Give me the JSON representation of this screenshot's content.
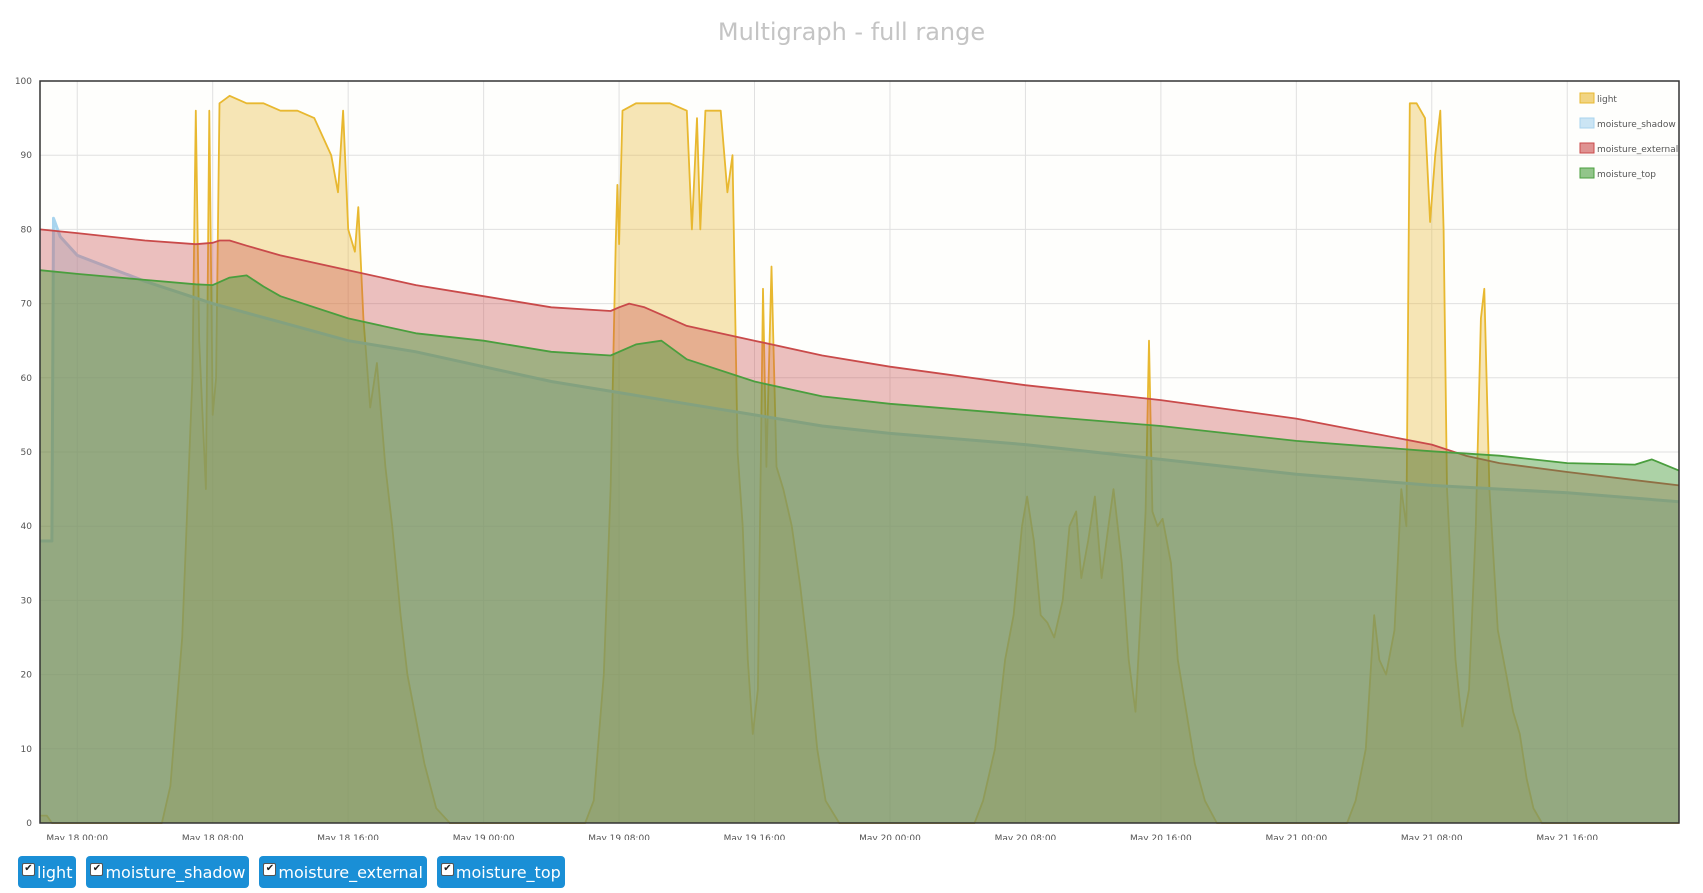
{
  "page_title": "Multigraph - full range",
  "colors": {
    "light": "#e8b830",
    "moisture_shadow": "#a8d4ee",
    "moisture_external": "#c94a4a",
    "moisture_top": "#4a9e3e"
  },
  "toggles": [
    {
      "label": "light",
      "checked": true
    },
    {
      "label": "moisture_shadow",
      "checked": true
    },
    {
      "label": "moisture_external",
      "checked": true
    },
    {
      "label": "moisture_top",
      "checked": true
    }
  ],
  "chart_data": {
    "type": "area",
    "title": "Multigraph - full range",
    "xlabel": "",
    "ylabel": "",
    "ylim": [
      0,
      100
    ],
    "xlim_hours": [
      -2.2,
      94.6
    ],
    "yticks": [
      0,
      10,
      20,
      30,
      40,
      50,
      60,
      70,
      80,
      90,
      100
    ],
    "xticks": [
      {
        "hour": 0,
        "label": "May 18 00:00"
      },
      {
        "hour": 8,
        "label": "May 18 08:00"
      },
      {
        "hour": 16,
        "label": "May 18 16:00"
      },
      {
        "hour": 24,
        "label": "May 19 00:00"
      },
      {
        "hour": 32,
        "label": "May 19 08:00"
      },
      {
        "hour": 40,
        "label": "May 19 16:00"
      },
      {
        "hour": 48,
        "label": "May 20 00:00"
      },
      {
        "hour": 56,
        "label": "May 20 08:00"
      },
      {
        "hour": 64,
        "label": "May 20 16:00"
      },
      {
        "hour": 72,
        "label": "May 21 00:00"
      },
      {
        "hour": 80,
        "label": "May 21 08:00"
      },
      {
        "hour": 88,
        "label": "May 21 16:00"
      }
    ],
    "grid": true,
    "legend_position": "top-right",
    "series": [
      {
        "name": "light",
        "points": [
          [
            -2.2,
            1
          ],
          [
            -1.8,
            1
          ],
          [
            -1.5,
            0
          ],
          [
            5,
            0
          ],
          [
            5.5,
            5
          ],
          [
            6.2,
            25
          ],
          [
            6.8,
            60
          ],
          [
            7.0,
            96
          ],
          [
            7.2,
            65
          ],
          [
            7.6,
            45
          ],
          [
            7.8,
            96
          ],
          [
            8.0,
            55
          ],
          [
            8.2,
            60
          ],
          [
            8.4,
            97
          ],
          [
            9,
            98
          ],
          [
            10,
            97
          ],
          [
            11,
            97
          ],
          [
            12,
            96
          ],
          [
            13,
            96
          ],
          [
            14,
            95
          ],
          [
            15,
            90
          ],
          [
            15.4,
            85
          ],
          [
            15.7,
            96
          ],
          [
            16.0,
            80
          ],
          [
            16.4,
            77
          ],
          [
            16.6,
            83
          ],
          [
            16.9,
            68
          ],
          [
            17.3,
            56
          ],
          [
            17.7,
            62
          ],
          [
            18.2,
            48
          ],
          [
            18.6,
            40
          ],
          [
            19.1,
            28
          ],
          [
            19.5,
            20
          ],
          [
            20,
            14
          ],
          [
            20.5,
            8
          ],
          [
            21.2,
            2
          ],
          [
            22,
            0
          ],
          [
            30,
            0
          ],
          [
            30.5,
            3
          ],
          [
            31.1,
            20
          ],
          [
            31.5,
            45
          ],
          [
            31.8,
            78
          ],
          [
            31.9,
            86
          ],
          [
            32.0,
            78
          ],
          [
            32.2,
            96
          ],
          [
            33,
            97
          ],
          [
            34,
            97
          ],
          [
            35,
            97
          ],
          [
            36,
            96
          ],
          [
            36.3,
            80
          ],
          [
            36.6,
            95
          ],
          [
            36.8,
            80
          ],
          [
            37.1,
            96
          ],
          [
            38,
            96
          ],
          [
            38.4,
            85
          ],
          [
            38.7,
            90
          ],
          [
            39.0,
            50
          ],
          [
            39.3,
            40
          ],
          [
            39.6,
            22
          ],
          [
            39.9,
            12
          ],
          [
            40.2,
            18
          ],
          [
            40.5,
            72
          ],
          [
            40.7,
            48
          ],
          [
            41.0,
            75
          ],
          [
            41.3,
            48
          ],
          [
            41.7,
            45
          ],
          [
            42.2,
            40
          ],
          [
            42.7,
            32
          ],
          [
            43.2,
            22
          ],
          [
            43.7,
            10
          ],
          [
            44.2,
            3
          ],
          [
            45,
            0
          ],
          [
            53,
            0
          ],
          [
            53.5,
            3
          ],
          [
            54.2,
            10
          ],
          [
            54.8,
            22
          ],
          [
            55.3,
            28
          ],
          [
            55.8,
            40
          ],
          [
            56.1,
            44
          ],
          [
            56.5,
            38
          ],
          [
            56.9,
            28
          ],
          [
            57.3,
            27
          ],
          [
            57.7,
            25
          ],
          [
            58.2,
            30
          ],
          [
            58.6,
            40
          ],
          [
            59.0,
            42
          ],
          [
            59.3,
            33
          ],
          [
            59.7,
            38
          ],
          [
            60.1,
            44
          ],
          [
            60.5,
            33
          ],
          [
            60.9,
            40
          ],
          [
            61.2,
            45
          ],
          [
            61.7,
            35
          ],
          [
            62.1,
            22
          ],
          [
            62.5,
            15
          ],
          [
            62.8,
            28
          ],
          [
            63.1,
            42
          ],
          [
            63.3,
            65
          ],
          [
            63.5,
            42
          ],
          [
            63.8,
            40
          ],
          [
            64.1,
            41
          ],
          [
            64.6,
            35
          ],
          [
            65.0,
            22
          ],
          [
            65.5,
            15
          ],
          [
            66,
            8
          ],
          [
            66.6,
            3
          ],
          [
            67.3,
            0
          ],
          [
            75,
            0
          ],
          [
            75.5,
            3
          ],
          [
            76.1,
            10
          ],
          [
            76.6,
            28
          ],
          [
            76.9,
            22
          ],
          [
            77.3,
            20
          ],
          [
            77.8,
            26
          ],
          [
            78.2,
            45
          ],
          [
            78.5,
            40
          ],
          [
            78.7,
            97
          ],
          [
            79.1,
            97
          ],
          [
            79.6,
            95
          ],
          [
            79.9,
            81
          ],
          [
            80.2,
            90
          ],
          [
            80.5,
            96
          ],
          [
            80.7,
            80
          ],
          [
            80.9,
            45
          ],
          [
            81.4,
            22
          ],
          [
            81.8,
            13
          ],
          [
            82.2,
            18
          ],
          [
            82.6,
            40
          ],
          [
            82.9,
            68
          ],
          [
            83.1,
            72
          ],
          [
            83.4,
            45
          ],
          [
            83.9,
            26
          ],
          [
            84.4,
            20
          ],
          [
            84.8,
            15
          ],
          [
            85.2,
            12
          ],
          [
            85.6,
            6
          ],
          [
            86.0,
            2
          ],
          [
            86.5,
            0
          ],
          [
            94.6,
            0
          ]
        ]
      },
      {
        "name": "moisture_shadow",
        "points": [
          [
            -2.2,
            38
          ],
          [
            -1.5,
            38
          ],
          [
            -1.4,
            81.5
          ],
          [
            -1.0,
            79
          ],
          [
            0,
            76.5
          ],
          [
            4,
            73
          ],
          [
            8,
            70
          ],
          [
            12,
            67.5
          ],
          [
            16,
            65
          ],
          [
            20,
            63.5
          ],
          [
            24,
            61.5
          ],
          [
            28,
            59.5
          ],
          [
            32,
            58
          ],
          [
            36,
            56.5
          ],
          [
            40,
            55
          ],
          [
            44,
            53.5
          ],
          [
            48,
            52.5
          ],
          [
            56,
            51
          ],
          [
            64,
            49
          ],
          [
            72,
            47
          ],
          [
            80,
            45.5
          ],
          [
            88,
            44.5
          ],
          [
            94.6,
            43.3
          ]
        ]
      },
      {
        "name": "moisture_external",
        "points": [
          [
            -2.2,
            80
          ],
          [
            0,
            79.5
          ],
          [
            4,
            78.5
          ],
          [
            7,
            78
          ],
          [
            8,
            78.2
          ],
          [
            8.4,
            78.5
          ],
          [
            9,
            78.5
          ],
          [
            10,
            77.8
          ],
          [
            12,
            76.5
          ],
          [
            16,
            74.5
          ],
          [
            20,
            72.5
          ],
          [
            24,
            71
          ],
          [
            28,
            69.5
          ],
          [
            31.5,
            69
          ],
          [
            32,
            69.5
          ],
          [
            32.6,
            70
          ],
          [
            33.5,
            69.5
          ],
          [
            34.5,
            68.5
          ],
          [
            36,
            67
          ],
          [
            40,
            65
          ],
          [
            44,
            63
          ],
          [
            48,
            61.5
          ],
          [
            56,
            59
          ],
          [
            64,
            57
          ],
          [
            72,
            54.5
          ],
          [
            80,
            51
          ],
          [
            82,
            49.5
          ],
          [
            84,
            48.5
          ],
          [
            88,
            47.3
          ],
          [
            94.6,
            45.5
          ]
        ]
      },
      {
        "name": "moisture_top",
        "points": [
          [
            -2.2,
            74.5
          ],
          [
            0,
            74
          ],
          [
            4,
            73.2
          ],
          [
            7,
            72.6
          ],
          [
            8,
            72.5
          ],
          [
            9,
            73.5
          ],
          [
            10,
            73.8
          ],
          [
            11,
            72.3
          ],
          [
            12,
            71
          ],
          [
            16,
            68
          ],
          [
            20,
            66
          ],
          [
            24,
            65
          ],
          [
            28,
            63.5
          ],
          [
            31.5,
            63
          ],
          [
            33,
            64.5
          ],
          [
            34.5,
            65
          ],
          [
            36,
            62.5
          ],
          [
            40,
            59.5
          ],
          [
            44,
            57.5
          ],
          [
            48,
            56.5
          ],
          [
            56,
            55
          ],
          [
            64,
            53.5
          ],
          [
            72,
            51.5
          ],
          [
            80,
            50.1
          ],
          [
            84,
            49.5
          ],
          [
            88,
            48.5
          ],
          [
            92,
            48.3
          ],
          [
            93,
            49
          ],
          [
            94.6,
            47.5
          ]
        ]
      }
    ]
  }
}
